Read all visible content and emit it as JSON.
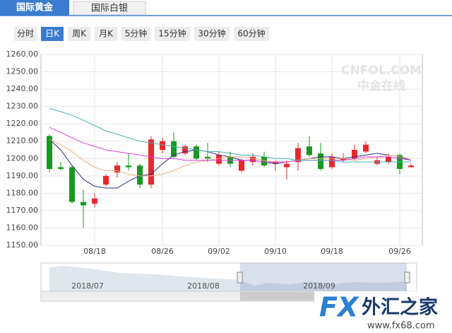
{
  "ui": {
    "tabs": [
      "国际黄金",
      "国际白银"
    ],
    "buttons": [
      "分时",
      "日K",
      "周K",
      "月K",
      "5分钟",
      "15分钟",
      "30分钟",
      "60分钟"
    ],
    "watermark": "CNFOL.COM",
    "watermark_sub": "中金在线",
    "navigator_labels": [
      "2018/07",
      "2018/08",
      "2018/09"
    ],
    "logo": "FX",
    "logo_cn": "外汇之家",
    "logo_url": "www.fx68.com"
  },
  "chart_data": {
    "type": "candlestick",
    "categories": [
      null,
      null,
      null,
      null,
      "08/18",
      null,
      null,
      null,
      null,
      null,
      "08/26",
      null,
      null,
      null,
      null,
      "09/02",
      null,
      null,
      null,
      null,
      "09/10",
      null,
      null,
      null,
      null,
      "09/18",
      null,
      null,
      null,
      null,
      null,
      "09/26",
      null
    ],
    "open": [
      1213,
      1195,
      1195,
      1175,
      1174,
      1185,
      1192,
      1196,
      1196,
      1185,
      1205,
      1210,
      1203,
      1207,
      1201,
      1197,
      1201,
      1193,
      1198,
      1201,
      1197,
      1195,
      1198,
      1207,
      1203,
      1195,
      1199,
      1200,
      1204,
      1197,
      1198,
      1202,
      1195
    ],
    "high": [
      1214,
      1198,
      1196,
      1182,
      1180,
      1191,
      1198,
      1203,
      1197,
      1213,
      1212,
      1215,
      1208,
      1208,
      1209,
      1204,
      1204,
      1200,
      1203,
      1204,
      1199,
      1199,
      1209,
      1213,
      1209,
      1203,
      1203,
      1208,
      1210,
      1201,
      1203,
      1203,
      1197
    ],
    "low": [
      1192,
      1193,
      1174,
      1160,
      1172,
      1184,
      1189,
      1193,
      1183,
      1183,
      1203,
      1200,
      1202,
      1199,
      1198,
      1196,
      1195,
      1192,
      1196,
      1195,
      1193,
      1188,
      1193,
      1201,
      1193,
      1194,
      1198,
      1199,
      1203,
      1196,
      1197,
      1191,
      1195
    ],
    "close": [
      1194,
      1194,
      1175,
      1173,
      1177,
      1190,
      1196,
      1195,
      1185,
      1211,
      1210,
      1201,
      1207,
      1200,
      1200,
      1202,
      1197,
      1199,
      1201,
      1196,
      1198,
      1197,
      1206,
      1202,
      1194,
      1201,
      1200,
      1205,
      1208,
      1199,
      1201,
      1194,
      1196
    ],
    "up_color": "#e8282b",
    "down_color": "#179a1f",
    "lines": [
      {
        "color": "#2a2f7a",
        "values": [
          1211,
          1205,
          1196,
          1188,
          1184,
          1183,
          1183,
          1187,
          1190,
          1191,
          1197,
          1202,
          1204,
          1205,
          1204,
          1202,
          1201,
          1199,
          1199,
          1198,
          1197,
          1198,
          1199,
          1200,
          1201,
          1201,
          1200,
          1201,
          1202,
          1203,
          1202,
          1201,
          1199
        ]
      },
      {
        "color": "#eeb07a",
        "values": [
          1211,
          1208,
          1204,
          1199,
          1195,
          1193,
          1193,
          1191,
          1190,
          1190,
          1191,
          1193,
          1196,
          1198,
          1199,
          1200,
          1201,
          1201,
          1200,
          1199,
          1198,
          1198,
          1199,
          1200,
          1200,
          1200,
          1200,
          1199,
          1200,
          1201,
          1202,
          1201,
          1200
        ]
      },
      {
        "color": "#e03ce0",
        "values": [
          1218,
          1215,
          1212,
          1209,
          1207,
          1205,
          1204,
          1203,
          1202,
          1201,
          1200,
          1200,
          1199,
          1199,
          1199,
          1199,
          1199,
          1199,
          1199,
          1198,
          1198,
          1198,
          1199,
          1199,
          1199,
          1199,
          1199,
          1200,
          1201,
          1201,
          1201,
          1200,
          1199
        ]
      },
      {
        "color": "#4bb0b0",
        "values": [
          1229,
          1227,
          1225,
          1222,
          1219,
          1216,
          1214,
          1212,
          1210,
          1209,
          1208,
          1207,
          1206,
          1205,
          1204,
          1204,
          1203,
          1202,
          1202,
          1201,
          1200,
          1200,
          1199,
          1199,
          1199,
          1199,
          1198,
          1198,
          1198,
          1198,
          1198,
          1198,
          1198
        ]
      }
    ],
    "ylim": [
      1150,
      1260
    ],
    "yticks": [
      {
        "value": 1150,
        "label": "1150.00"
      },
      {
        "value": 1160,
        "label": "1160.00"
      },
      {
        "value": 1170,
        "label": "1170.00"
      },
      {
        "value": 1180,
        "label": "1180.00"
      },
      {
        "value": 1190,
        "label": "1190.00"
      },
      {
        "value": 1200,
        "label": "1200.00"
      },
      {
        "value": 1210,
        "label": "1210.00"
      },
      {
        "value": 1220,
        "label": "1220.00"
      },
      {
        "value": 1230,
        "label": "1230.00"
      },
      {
        "value": 1240,
        "label": "1240.00"
      },
      {
        "value": 1250,
        "label": "1250.00"
      },
      {
        "value": 1260,
        "label": "1260.00"
      }
    ],
    "grid": true
  }
}
